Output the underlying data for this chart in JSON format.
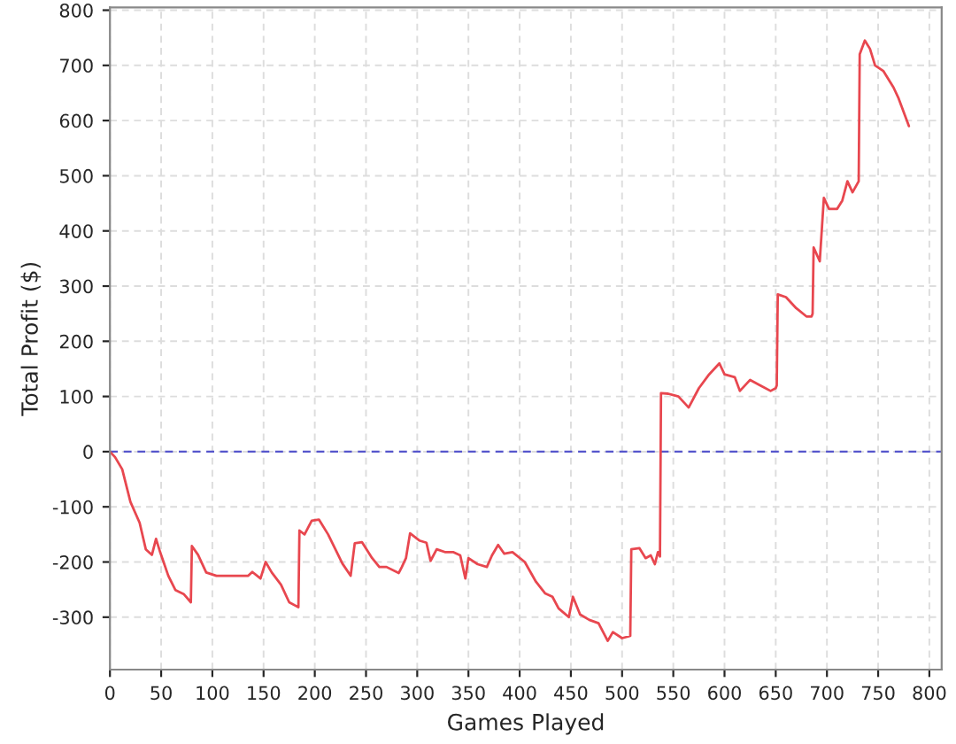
{
  "chart_data": {
    "type": "line",
    "xlabel": "Games Played",
    "ylabel": "Total Profit ($)",
    "xlim": [
      0,
      812
    ],
    "ylim": [
      -395,
      805
    ],
    "xticks": [
      0,
      50,
      100,
      150,
      200,
      250,
      300,
      350,
      400,
      450,
      500,
      550,
      600,
      650,
      700,
      750,
      800
    ],
    "yticks": [
      -300,
      -200,
      -100,
      0,
      100,
      200,
      300,
      400,
      500,
      600,
      700,
      800
    ],
    "grid": true,
    "marker": "none",
    "line_style": "solid",
    "ref_lines": [
      {
        "axis": "y",
        "value": 0,
        "color": "#5555cc",
        "line_style": "dashed"
      }
    ],
    "series": [
      {
        "color": "#e8474f",
        "x": [
          0,
          5,
          12,
          20,
          29,
          35,
          41,
          45,
          49,
          57,
          64,
          72,
          79,
          80,
          86,
          94,
          104,
          135,
          139,
          147,
          152,
          158,
          167,
          175,
          184,
          185,
          190,
          197,
          204,
          213,
          227,
          235,
          239,
          246,
          256,
          263,
          270,
          282,
          285,
          289,
          293,
          302,
          309,
          313,
          319,
          327,
          335,
          342,
          347,
          350,
          359,
          368,
          373,
          379,
          385,
          393,
          405,
          416,
          425,
          432,
          438,
          448,
          452,
          459,
          468,
          477,
          486,
          491,
          500,
          508,
          509,
          517,
          523,
          528,
          532,
          535,
          537,
          538,
          545,
          555,
          565,
          575,
          585,
          595,
          600,
          610,
          615,
          625,
          635,
          645,
          650,
          651,
          652,
          660,
          670,
          680,
          685,
          686,
          687,
          693,
          697,
          702,
          710,
          715,
          720,
          725,
          728,
          731,
          732,
          737,
          742,
          747,
          755,
          765,
          770,
          775,
          780
        ],
        "values": [
          0,
          -10,
          -32,
          -91,
          -129,
          -177,
          -187,
          -158,
          -182,
          -225,
          -251,
          -258,
          -273,
          -171,
          -187,
          -219,
          -225,
          -225,
          -218,
          -230,
          -200,
          -219,
          -241,
          -273,
          -282,
          -143,
          -150,
          -125,
          -123,
          -150,
          -203,
          -225,
          -166,
          -164,
          -193,
          -209,
          -209,
          -220,
          -209,
          -193,
          -148,
          -161,
          -165,
          -198,
          -177,
          -182,
          -182,
          -188,
          -230,
          -193,
          -204,
          -209,
          -188,
          -169,
          -185,
          -182,
          -200,
          -236,
          -257,
          -263,
          -284,
          -300,
          -263,
          -295,
          -305,
          -311,
          -343,
          -327,
          -338,
          -334,
          -177,
          -175,
          -193,
          -188,
          -204,
          -182,
          -190,
          106,
          105,
          100,
          80,
          115,
          140,
          160,
          140,
          135,
          110,
          130,
          120,
          110,
          115,
          120,
          285,
          280,
          260,
          245,
          245,
          250,
          370,
          345,
          460,
          440,
          440,
          455,
          490,
          470,
          480,
          490,
          720,
          745,
          730,
          700,
          690,
          660,
          640,
          615,
          590
        ]
      }
    ]
  }
}
